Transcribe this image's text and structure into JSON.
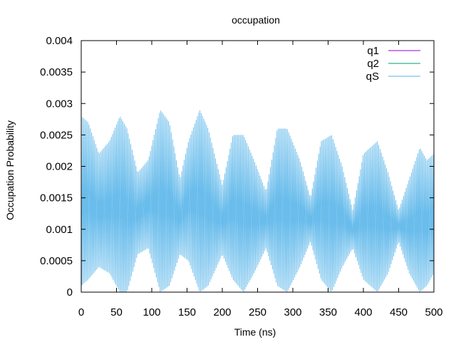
{
  "chart_data": {
    "type": "line",
    "title": "occupation",
    "xlabel": "Time (ns)",
    "ylabel": "Occupation Probability",
    "xlim": [
      0,
      500
    ],
    "ylim": [
      0,
      0.004
    ],
    "xticks": [
      0,
      50,
      100,
      150,
      200,
      250,
      300,
      350,
      400,
      450,
      500
    ],
    "yticks": [
      0,
      0.0005,
      0.001,
      0.0015,
      0.002,
      0.0025,
      0.003,
      0.0035,
      0.004
    ],
    "xtick_labels": [
      "0",
      "50",
      "100",
      "150",
      "200",
      "250",
      "300",
      "350",
      "400",
      "450",
      "500"
    ],
    "ytick_labels": [
      "0",
      "0.0005",
      "0.001",
      "0.0015",
      "0.002",
      "0.0025",
      "0.003",
      "0.0035",
      "0.004"
    ],
    "grid": false,
    "legend_position": "top-right",
    "series": [
      {
        "name": "q1",
        "color": "#9400d3",
        "baseline": 0.0,
        "amplitude": 0.0
      },
      {
        "name": "q2",
        "color": "#009e73",
        "baseline": 0.0,
        "amplitude": 0.0
      },
      {
        "name": "qS",
        "color": "#56b4e9",
        "oscillation_period": 1.85,
        "envelope": [
          {
            "x": 0,
            "min": 0.0001,
            "max": 0.0028
          },
          {
            "x": 10,
            "min": 0.0002,
            "max": 0.0027
          },
          {
            "x": 25,
            "min": 0.0004,
            "max": 0.0022
          },
          {
            "x": 40,
            "min": 0.0003,
            "max": 0.0024
          },
          {
            "x": 55,
            "min": 0.0,
            "max": 0.0028
          },
          {
            "x": 65,
            "min": 0.0,
            "max": 0.0026
          },
          {
            "x": 80,
            "min": 0.0006,
            "max": 0.0019
          },
          {
            "x": 95,
            "min": 0.0007,
            "max": 0.0021
          },
          {
            "x": 112,
            "min": 0.0,
            "max": 0.0029
          },
          {
            "x": 125,
            "min": 0.0001,
            "max": 0.0027
          },
          {
            "x": 140,
            "min": 0.0006,
            "max": 0.0018
          },
          {
            "x": 152,
            "min": 0.0005,
            "max": 0.0024
          },
          {
            "x": 168,
            "min": 0.0,
            "max": 0.0029
          },
          {
            "x": 180,
            "min": 0.0001,
            "max": 0.0026
          },
          {
            "x": 200,
            "min": 0.0006,
            "max": 0.0017
          },
          {
            "x": 215,
            "min": 0.0002,
            "max": 0.0025
          },
          {
            "x": 230,
            "min": 0.0,
            "max": 0.0025
          },
          {
            "x": 245,
            "min": 0.0003,
            "max": 0.0021
          },
          {
            "x": 262,
            "min": 0.0007,
            "max": 0.0016
          },
          {
            "x": 278,
            "min": 0.0001,
            "max": 0.0026
          },
          {
            "x": 292,
            "min": 0.0,
            "max": 0.0026
          },
          {
            "x": 310,
            "min": 0.0004,
            "max": 0.0021
          },
          {
            "x": 325,
            "min": 0.0008,
            "max": 0.0015
          },
          {
            "x": 340,
            "min": 0.0002,
            "max": 0.0024
          },
          {
            "x": 355,
            "min": 0.0,
            "max": 0.0025
          },
          {
            "x": 370,
            "min": 0.0004,
            "max": 0.002
          },
          {
            "x": 385,
            "min": 0.0007,
            "max": 0.0013
          },
          {
            "x": 400,
            "min": 0.0002,
            "max": 0.0022
          },
          {
            "x": 420,
            "min": 0.0,
            "max": 0.0024
          },
          {
            "x": 435,
            "min": 0.0003,
            "max": 0.0019
          },
          {
            "x": 450,
            "min": 0.0008,
            "max": 0.0013
          },
          {
            "x": 465,
            "min": 0.0003,
            "max": 0.0018
          },
          {
            "x": 480,
            "min": 0.0,
            "max": 0.0023
          },
          {
            "x": 490,
            "min": 0.0001,
            "max": 0.0021
          },
          {
            "x": 500,
            "min": 0.0003,
            "max": 0.0022
          }
        ]
      }
    ]
  }
}
